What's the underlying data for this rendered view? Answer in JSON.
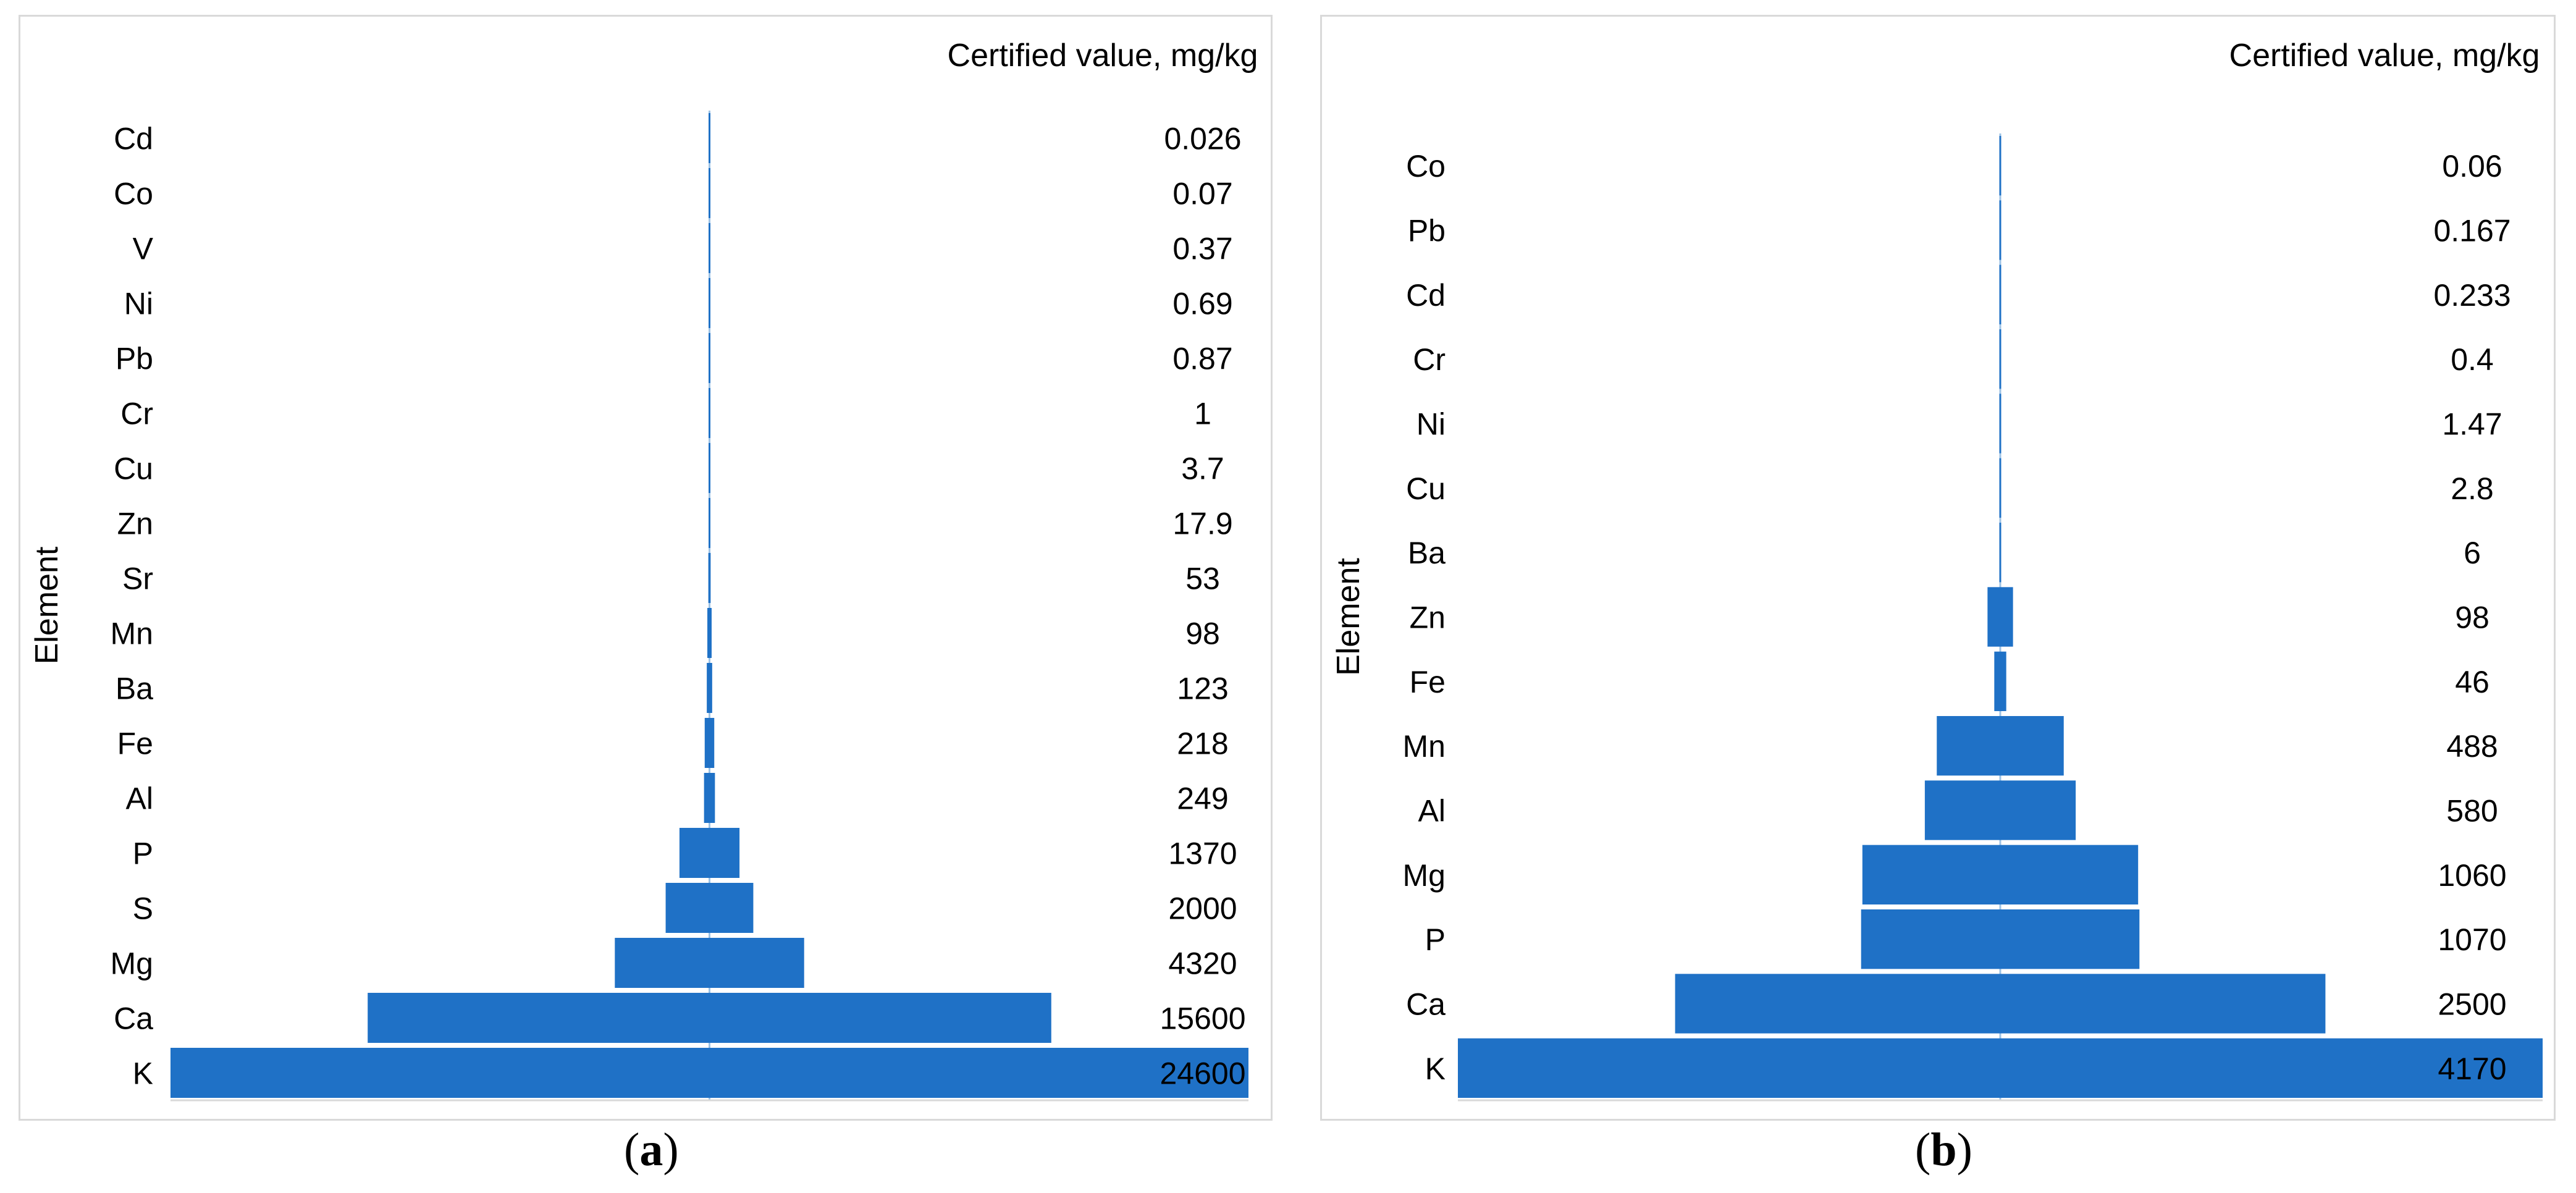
{
  "chart_data": [
    {
      "type": "bar",
      "orientation": "horizontal-centered-funnel",
      "panel_label": "a",
      "title": "",
      "ylabel": "Element",
      "value_header": "Certified value, mg/kg",
      "categories": [
        "Cd",
        "Co",
        "V",
        "Ni",
        "Pb",
        "Cr",
        "Cu",
        "Zn",
        "Sr",
        "Mn",
        "Ba",
        "Fe",
        "Al",
        "P",
        "S",
        "Mg",
        "Ca",
        "K"
      ],
      "values": [
        0.026,
        0.07,
        0.37,
        0.69,
        0.87,
        1,
        3.7,
        17.9,
        53,
        98,
        123,
        218,
        249,
        1370,
        2000,
        4320,
        15600,
        24600
      ],
      "value_labels": [
        "0.026",
        "0.07",
        "0.37",
        "0.69",
        "0.87",
        "1",
        "3.7",
        "17.9",
        "53",
        "98",
        "123",
        "218",
        "249",
        "1370",
        "2000",
        "4320",
        "15600",
        "24600"
      ],
      "xlim": [
        0,
        24600
      ],
      "color": "#1f71c6"
    },
    {
      "type": "bar",
      "orientation": "horizontal-centered-funnel",
      "panel_label": "b",
      "title": "",
      "ylabel": "Element",
      "value_header": "Certified value, mg/kg",
      "categories": [
        "Co",
        "Pb",
        "Cd",
        "Cr",
        "Ni",
        "Cu",
        "Ba",
        "Zn",
        "Fe",
        "Mn",
        "Al",
        "Mg",
        "P",
        "Ca",
        "K"
      ],
      "values": [
        0.06,
        0.167,
        0.233,
        0.4,
        1.47,
        2.8,
        6,
        98,
        46,
        488,
        580,
        1060,
        1070,
        2500,
        4170
      ],
      "value_labels": [
        "0.06",
        "0.167",
        "0.233",
        "0.4",
        "1.47",
        "2.8",
        "6",
        "98",
        "46",
        "488",
        "580",
        "1060",
        "1070",
        "2500",
        "4170"
      ],
      "xlim": [
        0,
        4170
      ],
      "color": "#1f71c6"
    }
  ]
}
